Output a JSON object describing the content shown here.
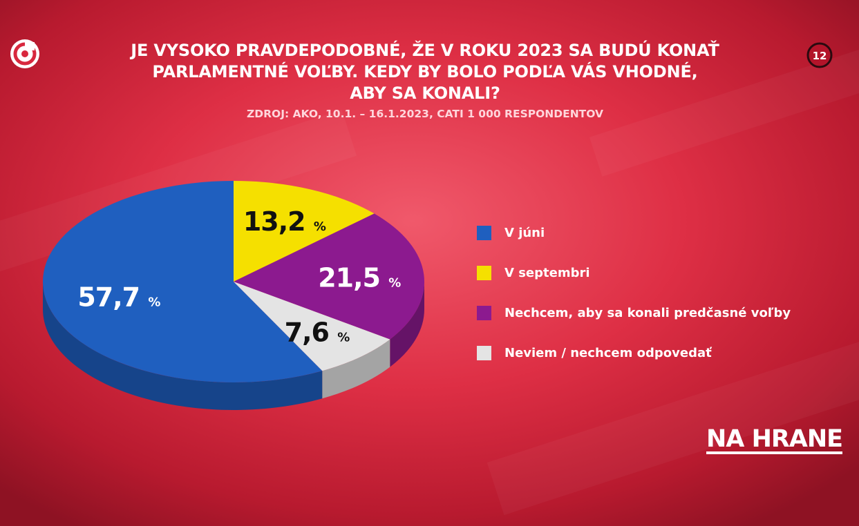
{
  "header": {
    "title_lines": [
      "JE VYSOKO PRAVDEPODOBNÉ, ŽE V ROKU 2023 SA BUDÚ KONAŤ",
      "PARLAMENTNÉ VOĽBY. KEDY BY BOLO PODĽA VÁS VHODNÉ,",
      "ABY SA KONALI?"
    ],
    "source": "ZDROJ: AKO, 10.1. – 16.1.2023, CATI 1 000 RESPONDENTOV"
  },
  "channel_logo": {
    "icon": "stv-spiral-logo-icon",
    "label": "12"
  },
  "chart_data": {
    "type": "pie",
    "title": "JE VYSOKO PRAVDEPODOBNÉ, ŽE V ROKU 2023 SA BUDÚ KONAŤ PARLAMENTNÉ VOĽBY. KEDY BY BOLO PODĽA VÁS VHODNÉ, ABY SA KONALI?",
    "unit": "%",
    "slices": [
      {
        "label": "V júni",
        "value": 57.7,
        "display": "57,7",
        "color": "#1f5fbf"
      },
      {
        "label": "V septembri",
        "value": 13.2,
        "display": "13,2",
        "color": "#f5e000"
      },
      {
        "label": "Nechcem, aby sa konali predčasné voľby",
        "value": 21.5,
        "display": "21,5",
        "color": "#8c1a8f"
      },
      {
        "label": "Neviem / nechcem odpovedať",
        "value": 7.6,
        "display": "7,6",
        "color": "#e4e4e4"
      }
    ],
    "legend_position": "right"
  },
  "brand": {
    "name": "NA HRANE"
  }
}
